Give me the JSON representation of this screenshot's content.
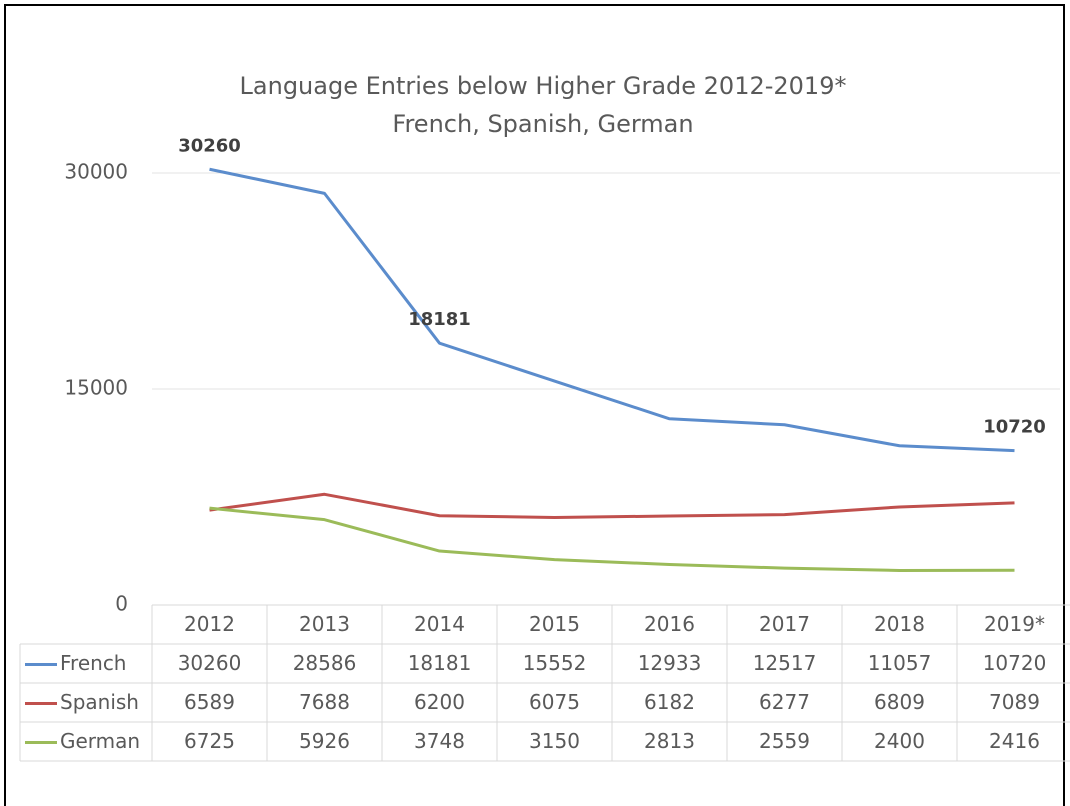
{
  "chart_data": {
    "type": "line",
    "title": "Language Entries below Higher Grade 2012-2019*",
    "subtitle": "French, Spanish, German",
    "categories": [
      "2012",
      "2013",
      "2014",
      "2015",
      "2016",
      "2017",
      "2018",
      "2019*"
    ],
    "series": [
      {
        "name": "French",
        "color": "#5b8ccc",
        "values": [
          30260,
          28586,
          18181,
          15552,
          12933,
          12517,
          11057,
          10720
        ]
      },
      {
        "name": "Spanish",
        "color": "#c0504d",
        "values": [
          6589,
          7688,
          6200,
          6075,
          6182,
          6277,
          6809,
          7089
        ]
      },
      {
        "name": "German",
        "color": "#9bbb59",
        "values": [
          6725,
          5926,
          3748,
          3150,
          2813,
          2559,
          2400,
          2416
        ]
      }
    ],
    "ylim": [
      0,
      30000
    ],
    "yticks": [
      0,
      15000,
      30000
    ],
    "grid": true
  }
}
